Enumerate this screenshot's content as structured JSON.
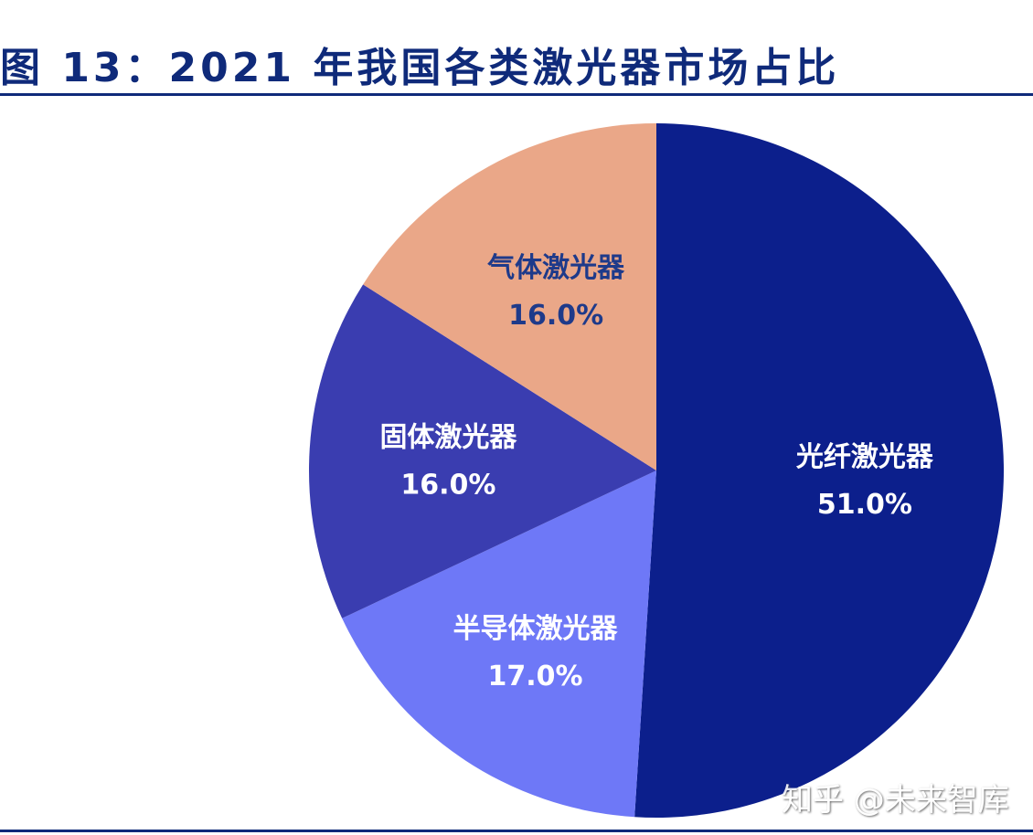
{
  "chart_data": {
    "type": "pie",
    "title": "图 13：2021 年我国各类激光器市场占比",
    "start_angle": "12 o'clock",
    "direction": "clockwise",
    "slices": [
      {
        "label": "光纤激光器",
        "value": 51.0,
        "value_label": "51.0%",
        "color": "#0c1f8c",
        "text_color": "#ffffff"
      },
      {
        "label": "半导体激光器",
        "value": 17.0,
        "value_label": "17.0%",
        "color": "#6e78f7",
        "text_color": "#ffffff"
      },
      {
        "label": "固体激光器",
        "value": 16.0,
        "value_label": "16.0%",
        "color": "#3a3db0",
        "text_color": "#ffffff"
      },
      {
        "label": "气体激光器",
        "value": 16.0,
        "value_label": "16.0%",
        "color": "#eaa788",
        "text_color": "#1e3a8a"
      }
    ]
  },
  "watermark": "知乎 @未来智库"
}
